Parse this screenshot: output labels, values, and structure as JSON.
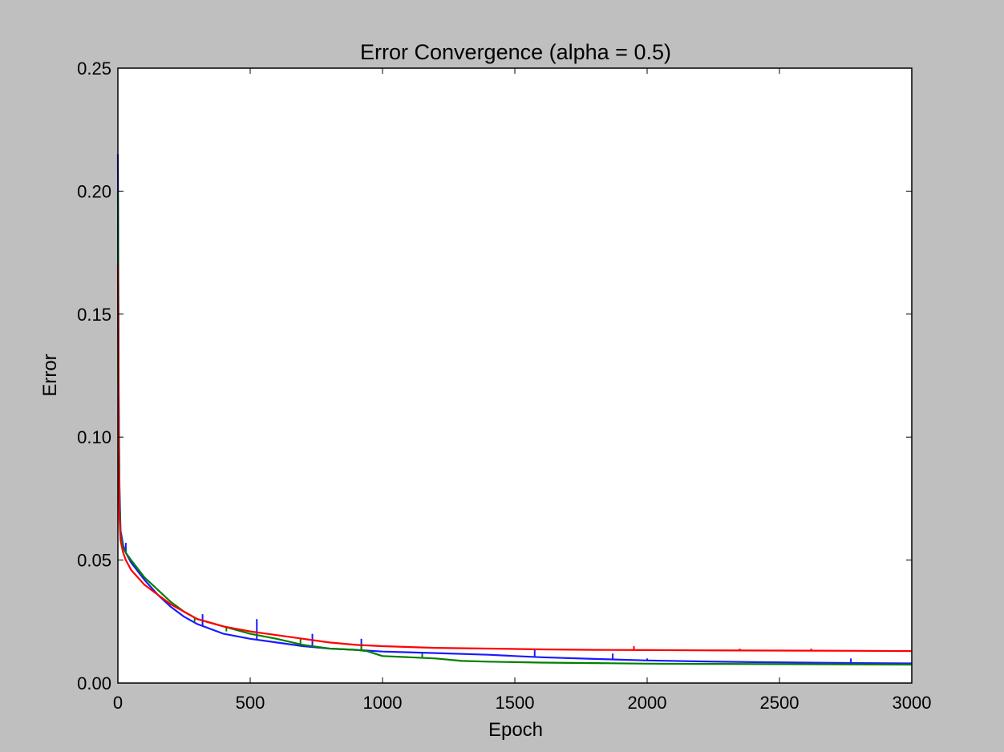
{
  "chart_data": {
    "type": "line",
    "title": "Error Convergence (alpha = 0.5)",
    "xlabel": "Epoch",
    "ylabel": "Error",
    "xlim": [
      0,
      3000
    ],
    "ylim": [
      0,
      0.25
    ],
    "xticks": [
      0,
      500,
      1000,
      1500,
      2000,
      2500,
      3000
    ],
    "xtick_labels": [
      "0",
      "500",
      "1000",
      "1500",
      "2000",
      "2500",
      "3000"
    ],
    "yticks": [
      0,
      0.05,
      0.1,
      0.15,
      0.2,
      0.25
    ],
    "ytick_labels": [
      "0.00",
      "0.05",
      "0.10",
      "0.15",
      "0.20",
      "0.25"
    ],
    "grid": false,
    "legend": "none",
    "series": [
      {
        "color": "#1a1aff",
        "points": [
          [
            0,
            0.215
          ],
          [
            3,
            0.12
          ],
          [
            6,
            0.08
          ],
          [
            10,
            0.062
          ],
          [
            20,
            0.056
          ],
          [
            30,
            0.053
          ],
          [
            50,
            0.049
          ],
          [
            100,
            0.042
          ],
          [
            150,
            0.036
          ],
          [
            200,
            0.031
          ],
          [
            250,
            0.027
          ],
          [
            300,
            0.024
          ],
          [
            400,
            0.02
          ],
          [
            500,
            0.018
          ],
          [
            600,
            0.0165
          ],
          [
            700,
            0.015
          ],
          [
            800,
            0.014
          ],
          [
            900,
            0.0135
          ],
          [
            1000,
            0.0128
          ],
          [
            1200,
            0.0122
          ],
          [
            1400,
            0.0115
          ],
          [
            1500,
            0.011
          ],
          [
            1600,
            0.0105
          ],
          [
            1800,
            0.0098
          ],
          [
            2000,
            0.0092
          ],
          [
            2200,
            0.0088
          ],
          [
            2400,
            0.0085
          ],
          [
            2600,
            0.0083
          ],
          [
            2800,
            0.0081
          ],
          [
            3000,
            0.008
          ]
        ],
        "spikes": [
          [
            30,
            0.057
          ],
          [
            320,
            0.028
          ],
          [
            525,
            0.026
          ],
          [
            735,
            0.02
          ],
          [
            920,
            0.018
          ],
          [
            1575,
            0.014
          ],
          [
            1870,
            0.012
          ],
          [
            2000,
            0.01
          ],
          [
            2770,
            0.01
          ]
        ]
      },
      {
        "color": "#008000",
        "points": [
          [
            0,
            0.2
          ],
          [
            3,
            0.11
          ],
          [
            6,
            0.075
          ],
          [
            10,
            0.06
          ],
          [
            20,
            0.055
          ],
          [
            30,
            0.053
          ],
          [
            50,
            0.05
          ],
          [
            100,
            0.043
          ],
          [
            150,
            0.038
          ],
          [
            200,
            0.033
          ],
          [
            250,
            0.029
          ],
          [
            300,
            0.026
          ],
          [
            400,
            0.023
          ],
          [
            500,
            0.02
          ],
          [
            600,
            0.018
          ],
          [
            700,
            0.0155
          ],
          [
            800,
            0.014
          ],
          [
            900,
            0.0135
          ],
          [
            940,
            0.013
          ],
          [
            1000,
            0.011
          ],
          [
            1100,
            0.0105
          ],
          [
            1200,
            0.01
          ],
          [
            1300,
            0.009
          ],
          [
            1400,
            0.0087
          ],
          [
            1600,
            0.0083
          ],
          [
            1800,
            0.0081
          ],
          [
            2000,
            0.0079
          ],
          [
            2200,
            0.0078
          ],
          [
            2500,
            0.0077
          ],
          [
            3000,
            0.0075
          ]
        ],
        "spikes": [
          [
            290,
            0.025
          ],
          [
            410,
            0.021
          ],
          [
            690,
            0.018
          ],
          [
            920,
            0.016
          ],
          [
            1150,
            0.012
          ]
        ]
      },
      {
        "color": "#ff0000",
        "points": [
          [
            0,
            0.17
          ],
          [
            3,
            0.09
          ],
          [
            6,
            0.068
          ],
          [
            10,
            0.058
          ],
          [
            20,
            0.053
          ],
          [
            30,
            0.05
          ],
          [
            50,
            0.046
          ],
          [
            100,
            0.04
          ],
          [
            150,
            0.036
          ],
          [
            200,
            0.032
          ],
          [
            250,
            0.029
          ],
          [
            300,
            0.026
          ],
          [
            400,
            0.023
          ],
          [
            500,
            0.021
          ],
          [
            600,
            0.0195
          ],
          [
            700,
            0.018
          ],
          [
            800,
            0.0165
          ],
          [
            900,
            0.0155
          ],
          [
            1000,
            0.015
          ],
          [
            1200,
            0.0143
          ],
          [
            1400,
            0.014
          ],
          [
            1600,
            0.0137
          ],
          [
            1800,
            0.0135
          ],
          [
            2000,
            0.0134
          ],
          [
            2200,
            0.0133
          ],
          [
            2500,
            0.0132
          ],
          [
            2800,
            0.0131
          ],
          [
            3000,
            0.013
          ]
        ],
        "spikes": [
          [
            660,
            0.019
          ],
          [
            1950,
            0.015
          ],
          [
            2350,
            0.014
          ],
          [
            2620,
            0.014
          ]
        ]
      }
    ]
  }
}
